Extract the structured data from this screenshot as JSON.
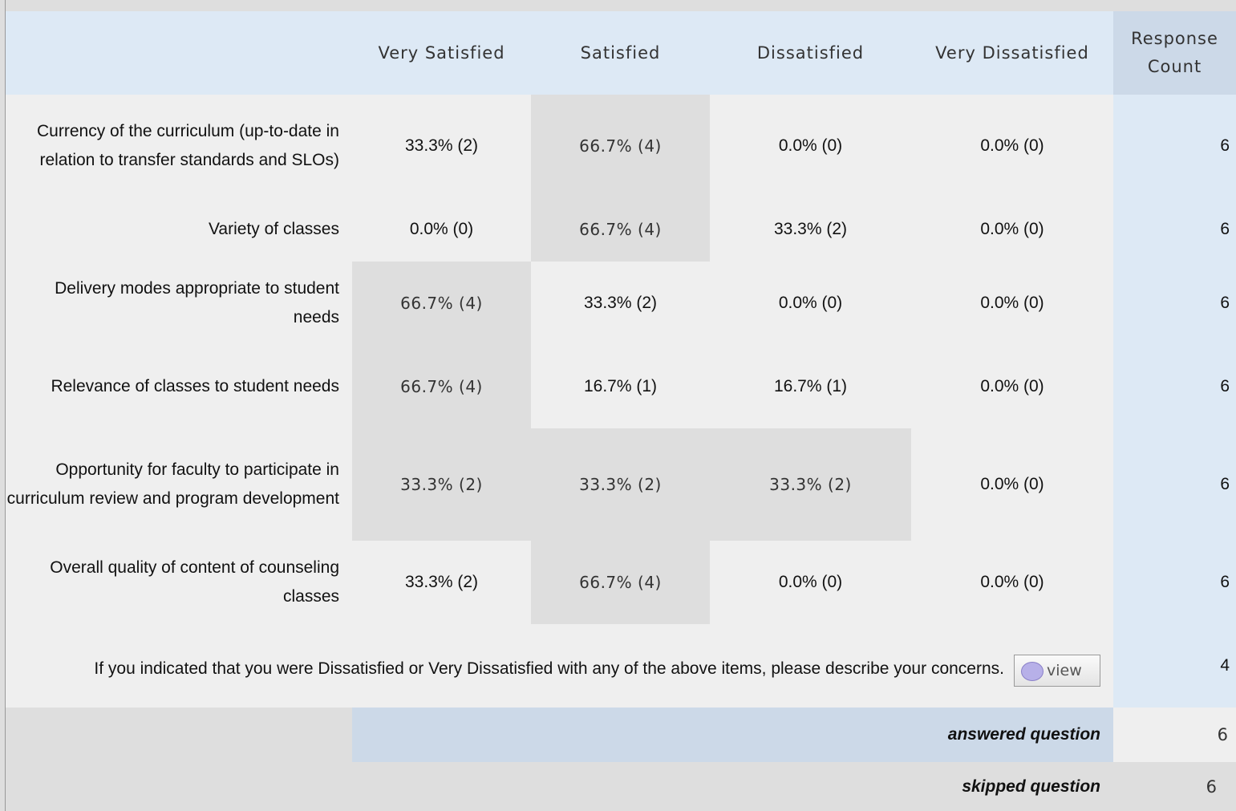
{
  "table": {
    "columns": [
      "Very Satisfied",
      "Satisfied",
      "Dissatisfied",
      "Very Dissatisfied",
      "Response Count"
    ],
    "rows": [
      {
        "label": "Currency of the curriculum (up-to-date in relation to transfer standards and SLOs)",
        "cells": [
          "33.3% (2)",
          "66.7% (4)",
          "0.0% (0)",
          "0.0% (0)"
        ],
        "count": 6,
        "highlight": [
          1
        ]
      },
      {
        "label": "Variety of classes",
        "cells": [
          "0.0% (0)",
          "66.7% (4)",
          "33.3% (2)",
          "0.0% (0)"
        ],
        "count": 6,
        "highlight": [
          1
        ]
      },
      {
        "label": "Delivery modes appropriate to student needs",
        "cells": [
          "66.7% (4)",
          "33.3% (2)",
          "0.0% (0)",
          "0.0% (0)"
        ],
        "count": 6,
        "highlight": [
          0
        ]
      },
      {
        "label": "Relevance of classes to student needs",
        "cells": [
          "66.7% (4)",
          "16.7% (1)",
          "16.7% (1)",
          "0.0% (0)"
        ],
        "count": 6,
        "highlight": [
          0
        ]
      },
      {
        "label": "Opportunity for faculty to participate in curriculum review and program development",
        "cells": [
          "33.3% (2)",
          "33.3% (2)",
          "33.3% (2)",
          "0.0% (0)"
        ],
        "count": 6,
        "highlight": [
          0,
          1,
          2
        ]
      },
      {
        "label": "Overall quality of content of counseling classes",
        "cells": [
          "33.3% (2)",
          "66.7% (4)",
          "0.0% (0)",
          "0.0% (0)"
        ],
        "count": 6,
        "highlight": [
          1
        ]
      }
    ],
    "comment": {
      "label": "If you indicated that you were Dissatisfied or Very Dissatisfied with any of the above items, please describe your concerns.",
      "button": "view",
      "count": 4
    },
    "answered": {
      "label": "answered question",
      "count": 6
    },
    "skipped": {
      "label": "skipped question",
      "count": 6
    }
  }
}
